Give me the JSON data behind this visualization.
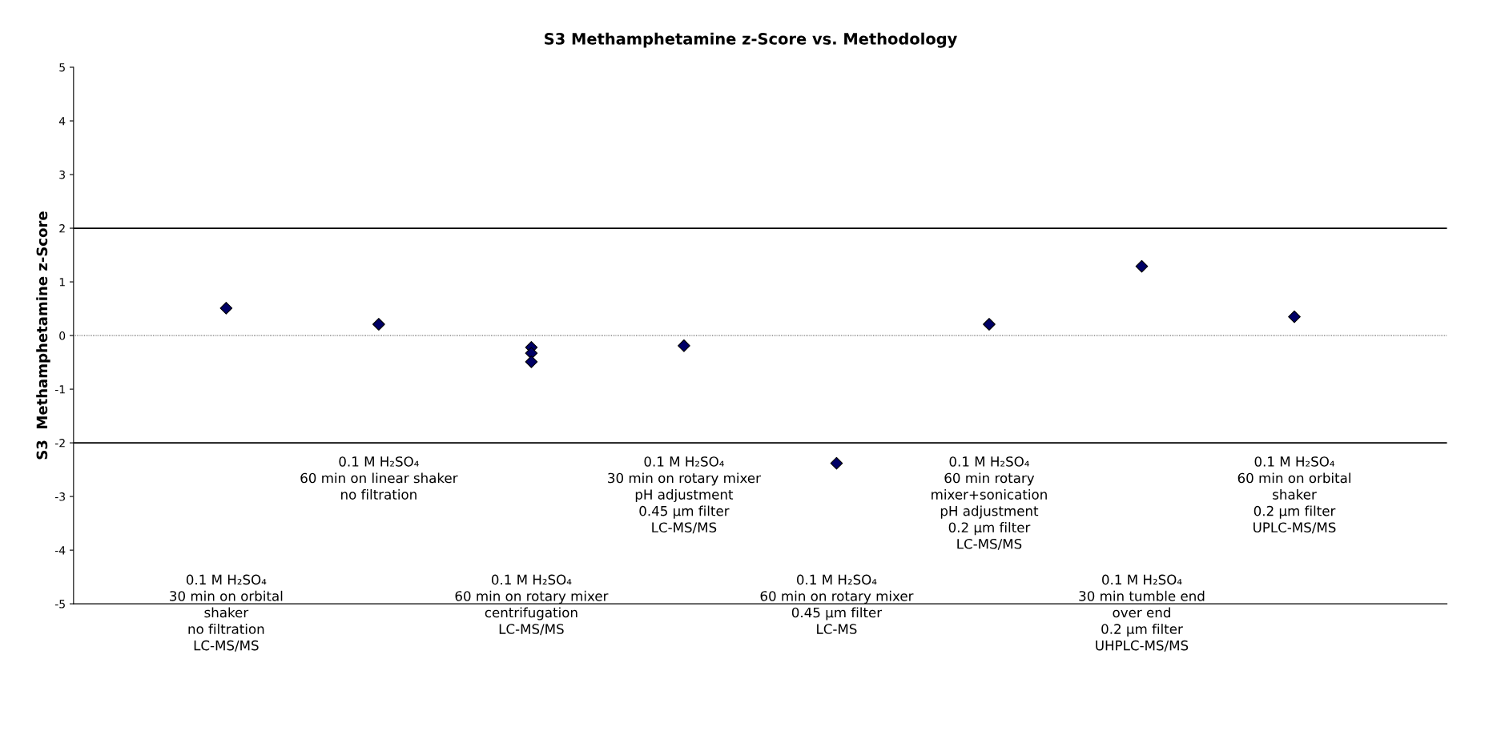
{
  "chart_data": {
    "type": "scatter",
    "title": "S3 Methamphetamine z-Score vs. Methodology",
    "ylabel": "S3  Methamphetamine z-Score",
    "categories": [
      "0.1 M H₂SO₄\n30 min on orbital\nshaker\nno filtration\nLC-MS/MS",
      "0.1 M H₂SO₄\n60 min on linear shaker\nno filtration",
      "0.1 M H₂SO₄\n60 min on rotary mixer\ncentrifugation\nLC-MS/MS",
      "0.1 M H₂SO₄\n30 min on rotary mixer\npH adjustment\n0.45 µm filter\nLC-MS/MS",
      "0.1 M H₂SO₄\n60 min on rotary mixer\n0.45 µm filter\nLC-MS",
      "0.1 M H₂SO₄\n60 min rotary\nmixer+sonication\npH adjustment\n0.2 µm filter\nLC-MS/MS",
      "0.1 M H₂SO₄\n30 min tumble end\nover end\n0.2 µm filter\nUHPLC-MS/MS",
      "0.1 M H₂SO₄\n60 min on orbital\nshaker\n0.2 µm filter\nUPLC-MS/MS"
    ],
    "series": [
      {
        "color": "#000066",
        "values": [
          0.51,
          0.21,
          -0.22,
          -0.19,
          -2.38,
          0.21,
          1.29,
          0.35
        ]
      },
      {
        "color": "#000066",
        "values": [
          null,
          null,
          -0.33,
          null,
          null,
          null,
          null,
          null
        ]
      },
      {
        "color": "#000066",
        "values": [
          null,
          null,
          -0.49,
          null,
          null,
          null,
          null,
          null
        ]
      }
    ],
    "ylim": [
      -5,
      5
    ],
    "yticks": [
      -5,
      -4,
      -3,
      -2,
      -1,
      0,
      1,
      2,
      3,
      4,
      5
    ],
    "ref_lines": [
      {
        "axis": "y",
        "value": 2,
        "color": "#000000",
        "line_style": "solid"
      },
      {
        "axis": "y",
        "value": -2,
        "color": "#000000",
        "line_style": "solid"
      },
      {
        "axis": "y",
        "value": 0,
        "color": "#000000",
        "line_style": "dotted"
      }
    ],
    "marker": "diamond",
    "grid": false
  }
}
